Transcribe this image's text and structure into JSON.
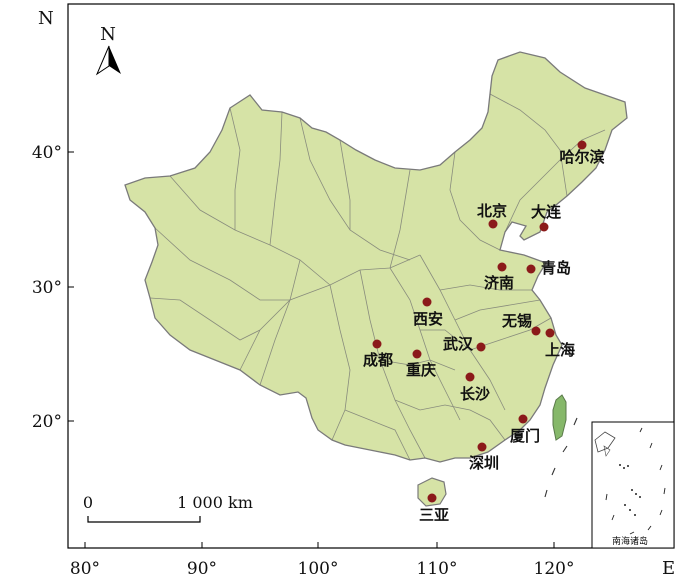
{
  "axes": {
    "north_letter": "N",
    "east_letter": "E",
    "x_ticks": [
      "80°",
      "90°",
      "100°",
      "110°",
      "120°"
    ],
    "y_ticks": [
      "40°",
      "30°",
      "20°"
    ]
  },
  "north_arrow": {
    "label": "N"
  },
  "scale_bar": {
    "zero_label": "0",
    "end_label": "1 000 km"
  },
  "inset": {
    "label": "南海诸岛"
  },
  "cities": [
    {
      "name": "哈尔滨"
    },
    {
      "name": "北京"
    },
    {
      "name": "大连"
    },
    {
      "name": "青岛"
    },
    {
      "name": "济南"
    },
    {
      "name": "西安"
    },
    {
      "name": "无锡"
    },
    {
      "name": "上海"
    },
    {
      "name": "武汉"
    },
    {
      "name": "成都"
    },
    {
      "name": "重庆"
    },
    {
      "name": "长沙"
    },
    {
      "name": "厦门"
    },
    {
      "name": "深圳"
    },
    {
      "name": "三亚"
    }
  ],
  "colors": {
    "land": "#d6e3a6",
    "border": "#8a8a8a",
    "province_border": "#6f6f6f",
    "city_marker": "#8b1a1a",
    "taiwan": "#86b86a"
  }
}
